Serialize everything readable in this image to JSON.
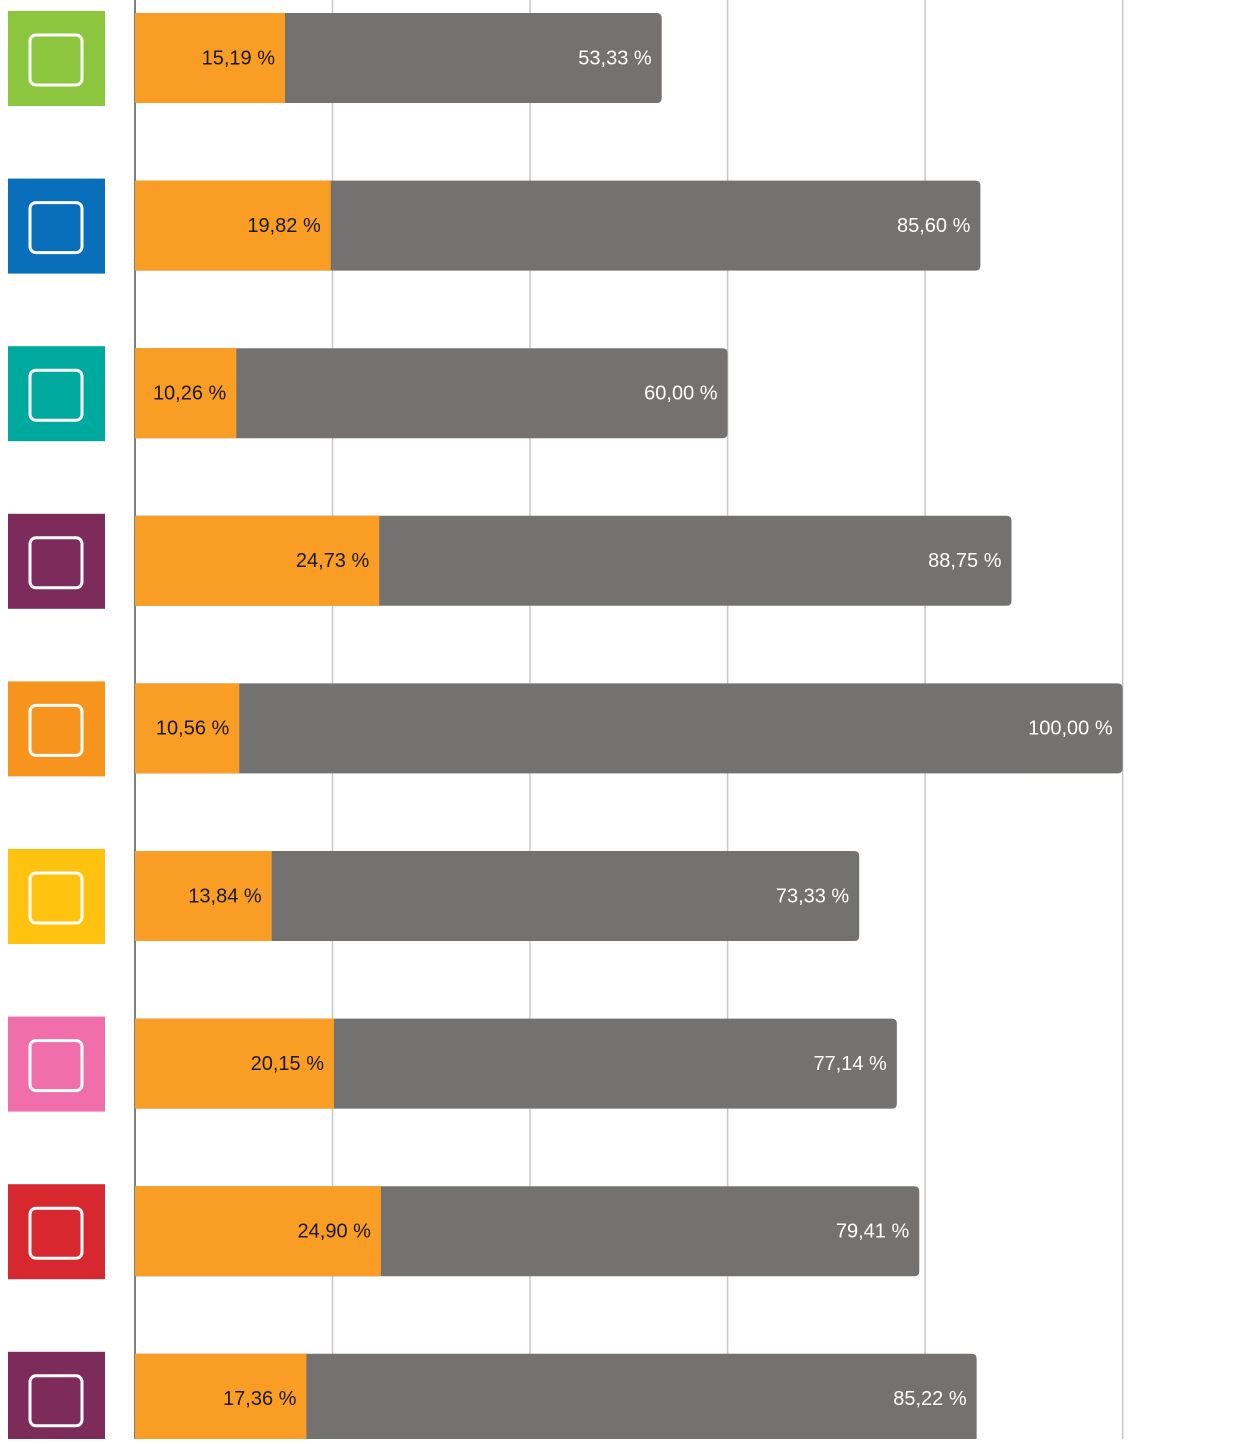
{
  "chart_data": {
    "type": "bar",
    "categories": [
      null,
      null,
      null,
      null,
      null,
      null,
      null,
      null,
      null
    ],
    "series": [
      {
        "color": "#737270",
        "values": [
          53.33,
          85.6,
          60.0,
          88.75,
          100.0,
          73.33,
          77.14,
          79.41,
          85.22
        ],
        "value_labels": [
          "53,33 %",
          "85,60 %",
          "60,00 %",
          "88,75 %",
          "100,00 %",
          "73,33 %",
          "77,14 %",
          "79,41 %",
          "85,22 %"
        ]
      },
      {
        "color": "#f99d25",
        "values": [
          15.19,
          19.82,
          10.26,
          24.73,
          10.56,
          13.84,
          20.15,
          24.9,
          17.36
        ],
        "value_labels": [
          "15,19 %",
          "19,82 %",
          "10,26 %",
          "24,73 %",
          "10,56 %",
          "13,84 %",
          "20,15 %",
          "24,90 %",
          "17,36 %"
        ]
      }
    ],
    "xlim": [
      0,
      113.1
    ],
    "xticks": [
      20,
      40,
      60,
      80,
      100
    ],
    "grid": true
  }
}
